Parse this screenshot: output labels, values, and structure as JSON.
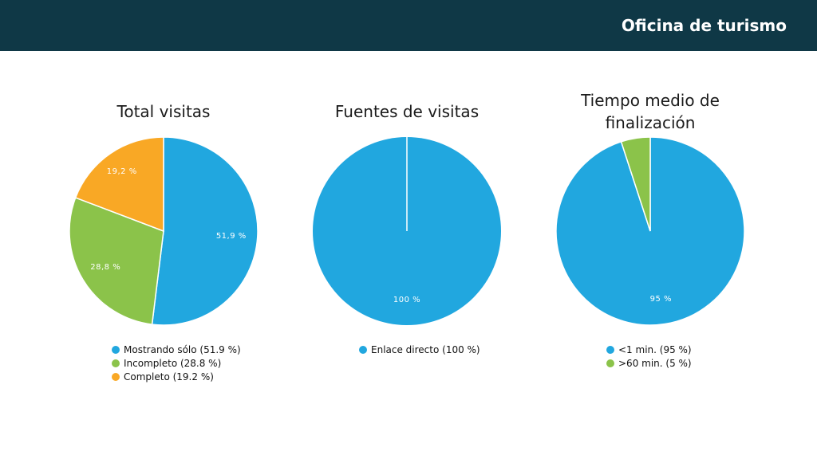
{
  "header": {
    "title": "Oficina de turismo",
    "background": "#0f3846"
  },
  "colors": {
    "blue": "#21a7df",
    "green": "#8bc34a",
    "orange": "#f9a825"
  },
  "chart_data": [
    {
      "type": "pie",
      "title": "Total visitas",
      "slices": [
        {
          "label": "Mostrando sólo (51.9 %)",
          "value": 51.9,
          "data_label": "51,9 %",
          "color": "#21a7df"
        },
        {
          "label": "Incompleto (28.8 %)",
          "value": 28.8,
          "data_label": "28,8 %",
          "color": "#8bc34a"
        },
        {
          "label": "Completo (19.2 %)",
          "value": 19.2,
          "data_label": "19,2 %",
          "color": "#f9a825"
        }
      ],
      "legend_position": "bottom"
    },
    {
      "type": "pie",
      "title": "Fuentes de visitas",
      "slices": [
        {
          "label": "Enlace directo (100 %)",
          "value": 100,
          "data_label": "100 %",
          "color": "#21a7df"
        }
      ],
      "legend_position": "bottom"
    },
    {
      "type": "pie",
      "title": "Tiempo medio de finalización",
      "slices": [
        {
          "label": "<1 min. (95 %)",
          "value": 95,
          "data_label": "95 %",
          "color": "#21a7df"
        },
        {
          "label": ">60 min. (5 %)",
          "value": 5,
          "data_label": "",
          "color": "#8bc34a"
        }
      ],
      "legend_position": "bottom"
    }
  ]
}
